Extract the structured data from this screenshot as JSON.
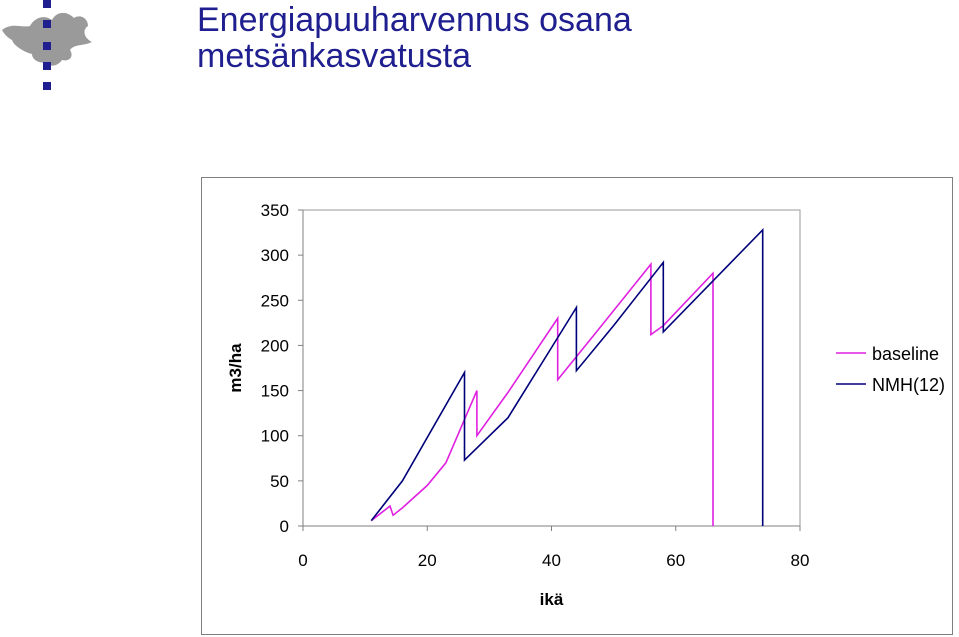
{
  "header": {
    "title_line1": "Energiapuuharvennus osana",
    "title_line2": "metsänkasvatusta"
  },
  "logo": {
    "icon": "university-flame-logo-icon",
    "color": "#1f1f8f"
  },
  "chart_data": {
    "type": "line",
    "title": "",
    "xlabel": "ikä",
    "ylabel": "m3/ha",
    "xlim": [
      0,
      80
    ],
    "ylim": [
      0,
      350
    ],
    "xticks": [
      0,
      20,
      40,
      60,
      80
    ],
    "yticks": [
      0,
      50,
      100,
      150,
      200,
      250,
      300,
      350
    ],
    "grid": false,
    "legend_position": "right",
    "series": [
      {
        "name": "baseline",
        "color": "#e020e0",
        "points": [
          [
            11,
            6
          ],
          [
            14,
            22
          ],
          [
            14.5,
            12
          ],
          [
            16,
            20
          ],
          [
            20,
            45
          ],
          [
            23,
            70
          ],
          [
            28,
            150
          ],
          [
            28,
            100
          ],
          [
            33,
            148
          ],
          [
            41,
            230
          ],
          [
            41,
            162
          ],
          [
            47,
            213
          ],
          [
            56,
            290
          ],
          [
            56,
            212
          ],
          [
            58,
            222
          ],
          [
            66,
            280
          ],
          [
            66,
            0
          ]
        ]
      },
      {
        "name": "NMH(12)",
        "color": "#00007a",
        "points": [
          [
            11,
            6
          ],
          [
            16,
            50
          ],
          [
            26,
            170
          ],
          [
            26,
            73
          ],
          [
            33,
            120
          ],
          [
            44,
            242
          ],
          [
            44,
            172
          ],
          [
            50,
            222
          ],
          [
            58,
            292
          ],
          [
            58,
            215
          ],
          [
            74,
            328
          ],
          [
            74,
            0
          ]
        ]
      }
    ]
  }
}
